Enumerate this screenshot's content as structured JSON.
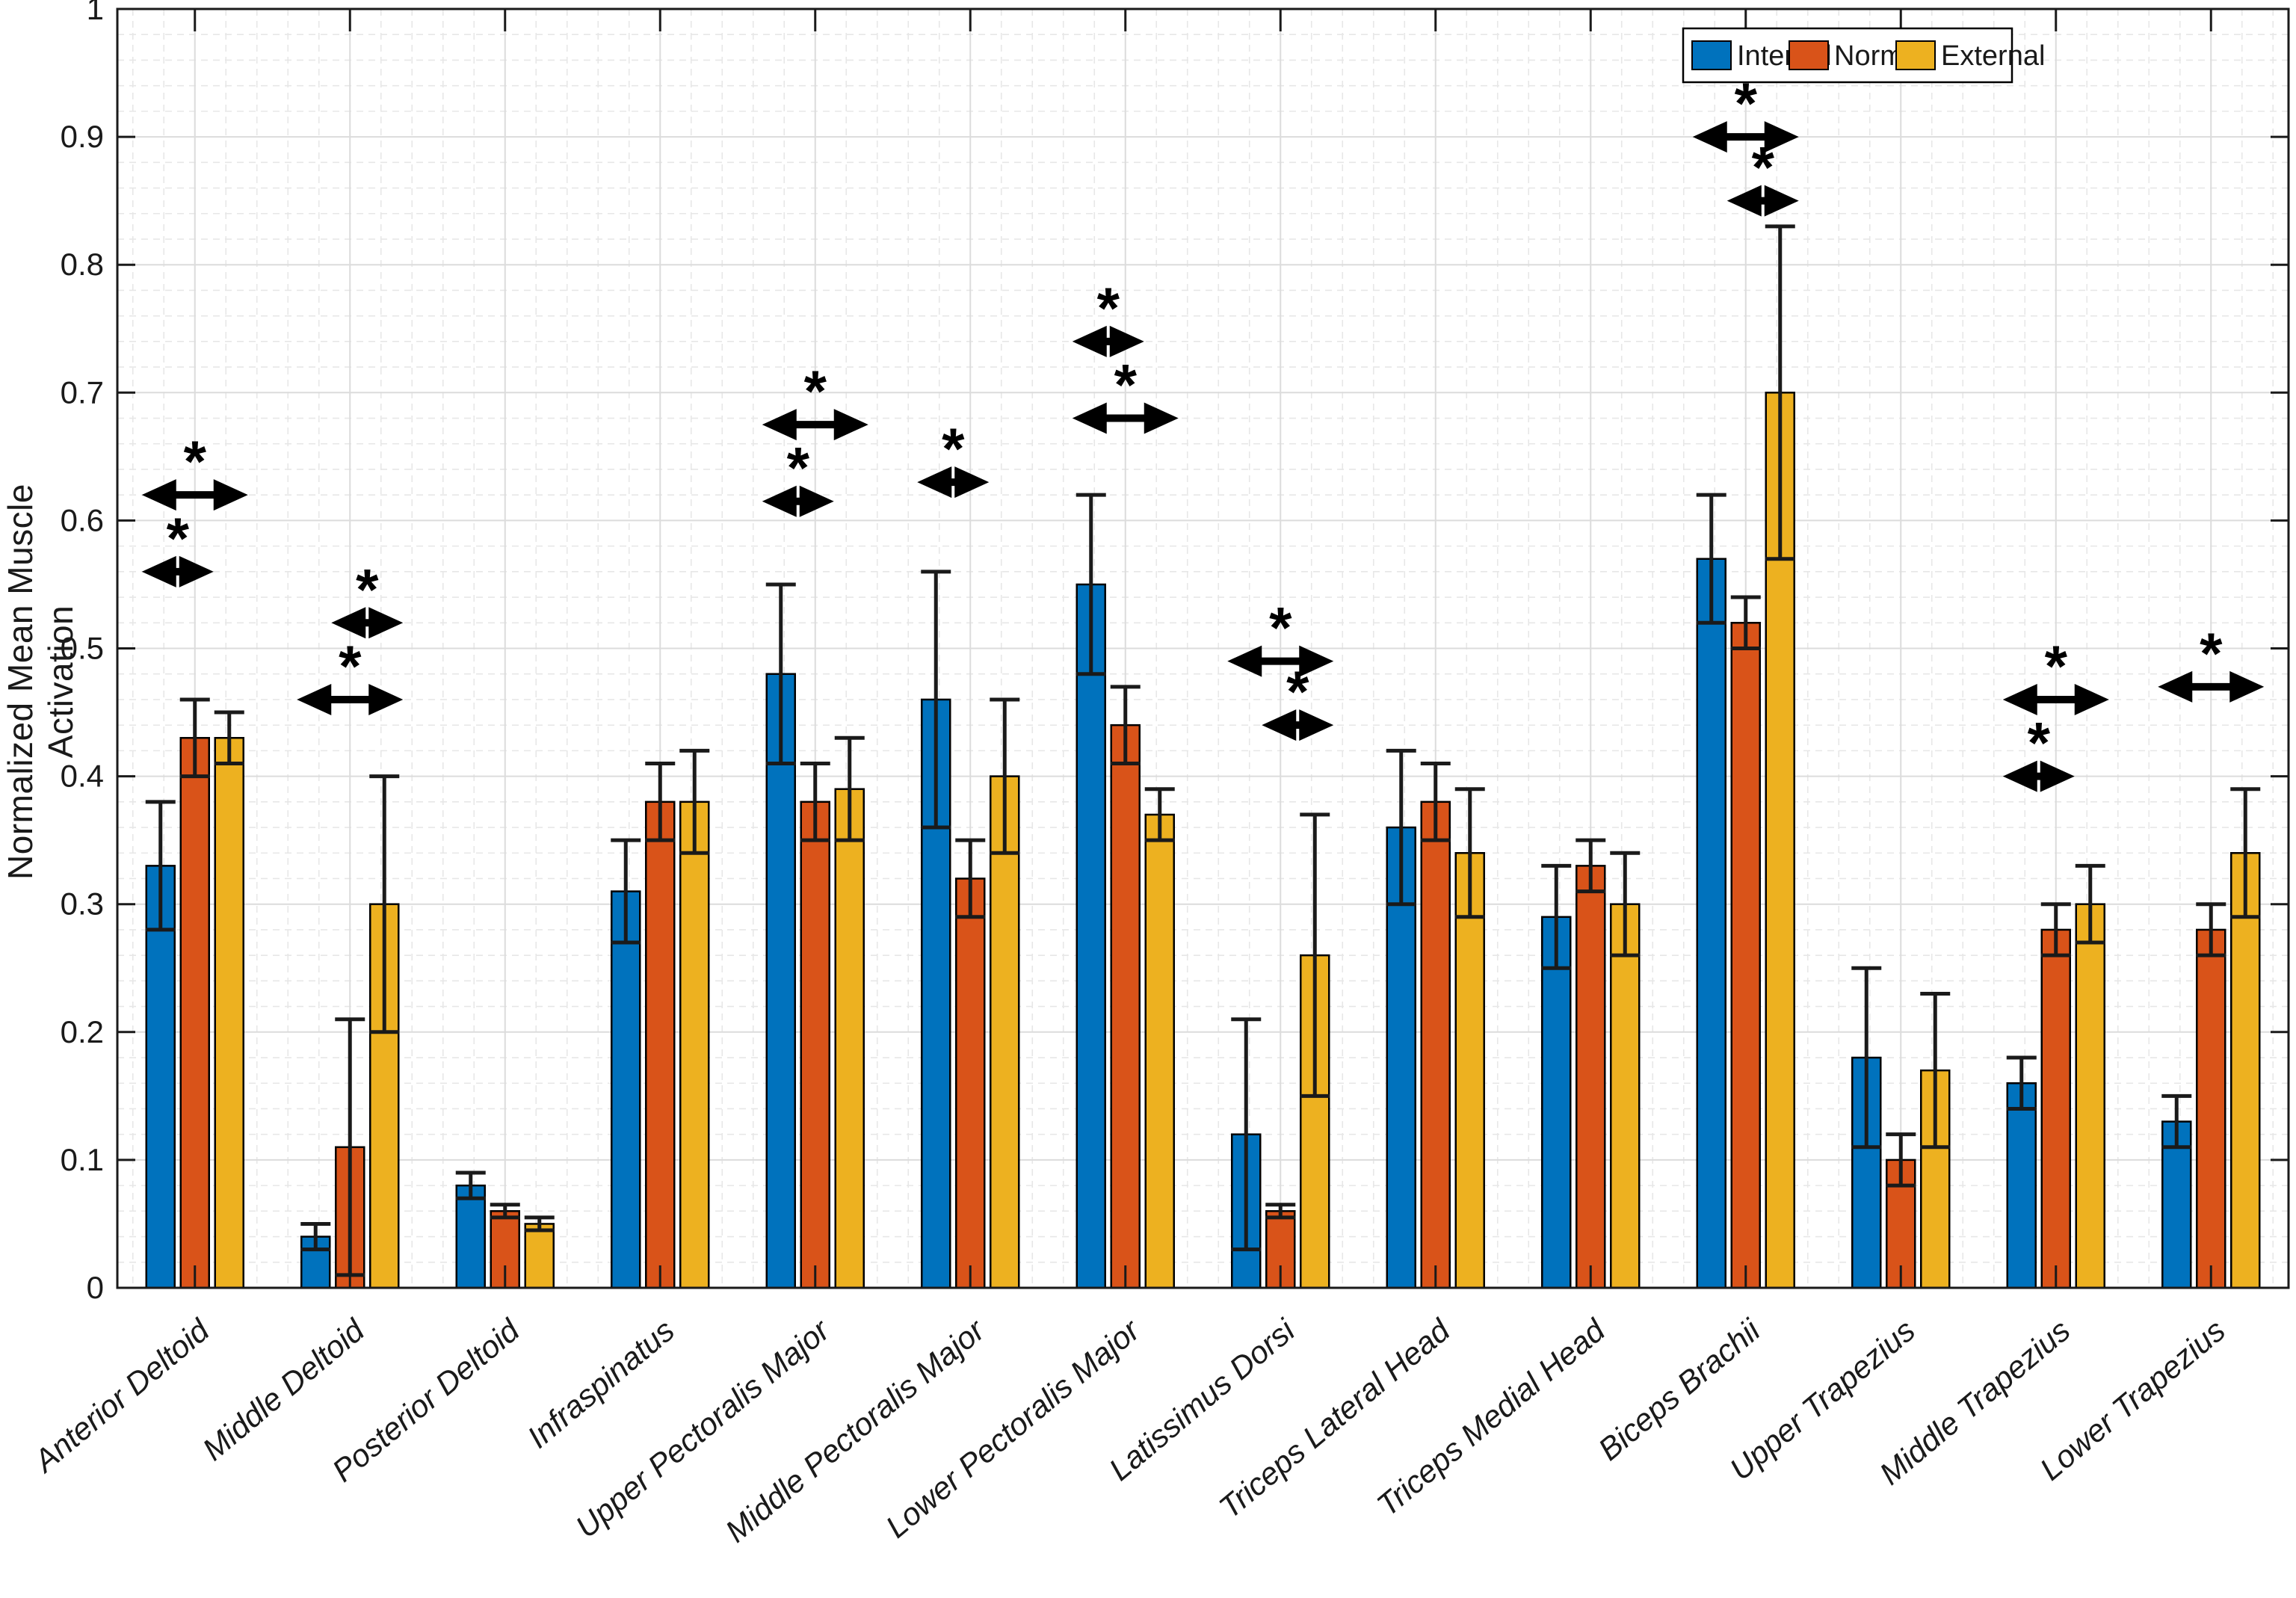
{
  "figure": {
    "background": "#ffffff",
    "axis_color": "#1a1a1a",
    "grid_major_color": "#dcdcdc",
    "grid_minor_color": "#e7e7e7"
  },
  "chart_data": {
    "type": "bar",
    "title": "",
    "xlabel": "",
    "ylabel": "Normalized Mean Muscle Activation",
    "ylim": [
      0,
      1
    ],
    "ytick_step": 0.1,
    "yticks": [
      "0",
      "0.1",
      "0.2",
      "0.3",
      "0.4",
      "0.5",
      "0.6",
      "0.7",
      "0.8",
      "0.9",
      "1"
    ],
    "grid": "major solid horizontal+vertical, minor dashed",
    "legend_position": "top-right",
    "legend_labels": [
      "Internal",
      "Normal",
      "External"
    ],
    "categories": [
      "Anterior Deltoid",
      "Middle Deltoid",
      "Posterior Deltoid",
      "Infraspinatus",
      "Upper Pectoralis Major",
      "Middle Pectoralis Major",
      "Lower Pectoralis Major",
      "Latissimus Dorsi",
      "Triceps Lateral Head",
      "Triceps Medial Head",
      "Biceps Brachii",
      "Upper Trapezius",
      "Middle Trapezius",
      "Lower Trapezius"
    ],
    "series": [
      {
        "name": "Internal",
        "color": "#0072BD",
        "values": [
          0.33,
          0.04,
          0.08,
          0.31,
          0.48,
          0.46,
          0.55,
          0.12,
          0.36,
          0.29,
          0.57,
          0.18,
          0.16,
          0.13
        ],
        "errors": [
          0.05,
          0.01,
          0.01,
          0.04,
          0.07,
          0.1,
          0.07,
          0.09,
          0.06,
          0.04,
          0.05,
          0.07,
          0.02,
          0.02
        ]
      },
      {
        "name": "Normal",
        "color": "#D95319",
        "values": [
          0.43,
          0.11,
          0.06,
          0.38,
          0.38,
          0.32,
          0.44,
          0.06,
          0.38,
          0.33,
          0.52,
          0.1,
          0.28,
          0.28
        ],
        "errors": [
          0.03,
          0.1,
          0.005,
          0.03,
          0.03,
          0.03,
          0.03,
          0.005,
          0.03,
          0.02,
          0.02,
          0.02,
          0.02,
          0.02
        ]
      },
      {
        "name": "External",
        "color": "#EDB120",
        "values": [
          0.43,
          0.3,
          0.05,
          0.38,
          0.39,
          0.4,
          0.37,
          0.26,
          0.34,
          0.3,
          0.7,
          0.17,
          0.3,
          0.34
        ],
        "errors": [
          0.02,
          0.1,
          0.005,
          0.04,
          0.04,
          0.06,
          0.02,
          0.11,
          0.05,
          0.04,
          0.13,
          0.06,
          0.03,
          0.05
        ]
      }
    ],
    "significance": [
      {
        "category": "Anterior Deltoid",
        "between": [
          "Internal",
          "External"
        ],
        "y": 0.62,
        "label": "*"
      },
      {
        "category": "Anterior Deltoid",
        "between": [
          "Internal",
          "Normal"
        ],
        "y": 0.56,
        "label": "*"
      },
      {
        "category": "Middle Deltoid",
        "between": [
          "Normal",
          "External"
        ],
        "y": 0.52,
        "label": "*"
      },
      {
        "category": "Middle Deltoid",
        "between": [
          "Internal",
          "External"
        ],
        "y": 0.46,
        "label": "*"
      },
      {
        "category": "Upper Pectoralis Major",
        "between": [
          "Internal",
          "External"
        ],
        "y": 0.675,
        "label": "*"
      },
      {
        "category": "Upper Pectoralis Major",
        "between": [
          "Internal",
          "Normal"
        ],
        "y": 0.615,
        "label": "*"
      },
      {
        "category": "Middle Pectoralis Major",
        "between": [
          "Internal",
          "Normal"
        ],
        "y": 0.63,
        "label": "*"
      },
      {
        "category": "Lower Pectoralis Major",
        "between": [
          "Internal",
          "Normal"
        ],
        "y": 0.74,
        "label": "*"
      },
      {
        "category": "Lower Pectoralis Major",
        "between": [
          "Internal",
          "External"
        ],
        "y": 0.68,
        "label": "*"
      },
      {
        "category": "Latissimus Dorsi",
        "between": [
          "Internal",
          "External"
        ],
        "y": 0.49,
        "label": "*"
      },
      {
        "category": "Latissimus Dorsi",
        "between": [
          "Normal",
          "External"
        ],
        "y": 0.44,
        "label": "*"
      },
      {
        "category": "Biceps Brachii",
        "between": [
          "Internal",
          "External"
        ],
        "y": 0.9,
        "label": "*"
      },
      {
        "category": "Biceps Brachii",
        "between": [
          "Normal",
          "External"
        ],
        "y": 0.85,
        "label": "*"
      },
      {
        "category": "Middle Trapezius",
        "between": [
          "Internal",
          "External"
        ],
        "y": 0.46,
        "label": "*"
      },
      {
        "category": "Middle Trapezius",
        "between": [
          "Internal",
          "Normal"
        ],
        "y": 0.4,
        "label": "*"
      },
      {
        "category": "Lower Trapezius",
        "between": [
          "Internal",
          "External"
        ],
        "y": 0.47,
        "label": "*"
      }
    ]
  }
}
